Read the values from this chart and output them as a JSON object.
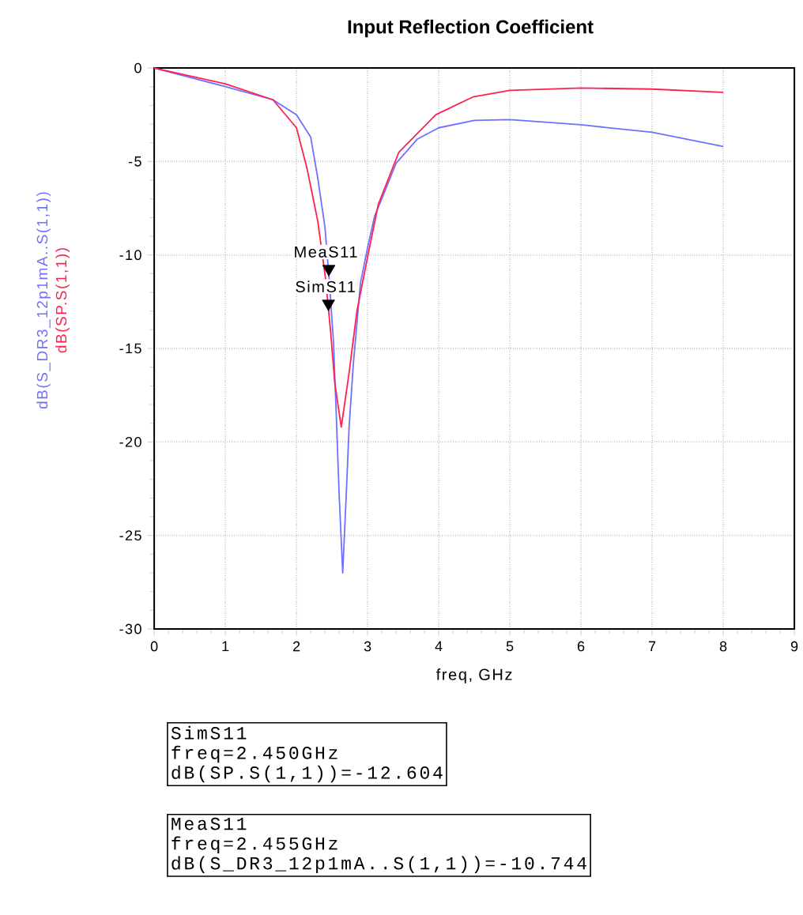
{
  "chart_data": {
    "type": "line",
    "title": "Input Reflection Coefficient",
    "xlabel": "freq, GHz",
    "xlim": [
      0,
      9
    ],
    "xticks": [
      0,
      1,
      2,
      3,
      4,
      5,
      6,
      7,
      8,
      9
    ],
    "ylim": [
      -30,
      0
    ],
    "yticks": [
      -30,
      -25,
      -20,
      -15,
      -10,
      -5,
      0
    ],
    "grid": true,
    "series": [
      {
        "name": "dB(S_DR3_12p1mA..S(1,1))",
        "color": "#7070ff",
        "x": [
          0,
          1,
          1.67,
          2.0,
          2.2,
          2.3,
          2.4,
          2.46,
          2.52,
          2.56,
          2.6,
          2.65,
          2.7,
          2.74,
          2.8,
          2.9,
          3.0,
          3.1,
          3.2,
          3.4,
          3.7,
          4.0,
          4.5,
          5.0,
          6.0,
          7.0,
          8.0
        ],
        "values": [
          0,
          -1.0,
          -1.7,
          -2.5,
          -3.7,
          -5.9,
          -8.5,
          -11.3,
          -14.6,
          -18.6,
          -22.8,
          -27.0,
          -22.8,
          -19.2,
          -15.8,
          -11.5,
          -9.6,
          -7.9,
          -7.0,
          -5.1,
          -3.8,
          -3.2,
          -2.8,
          -2.76,
          -3.04,
          -3.44,
          -4.2
        ]
      },
      {
        "name": "dB(SP.S(1,1))",
        "color": "#ff2050",
        "x": [
          0,
          1.0,
          1.67,
          2.0,
          2.15,
          2.3,
          2.41,
          2.48,
          2.54,
          2.63,
          2.74,
          2.85,
          3.0,
          3.15,
          3.44,
          3.96,
          4.48,
          5.0,
          6.0,
          7.0,
          8.0
        ],
        "values": [
          0,
          -0.85,
          -1.7,
          -3.2,
          -5.4,
          -8.2,
          -11.3,
          -14.1,
          -16.9,
          -19.2,
          -16.3,
          -13.0,
          -10.1,
          -7.3,
          -4.5,
          -2.5,
          -1.55,
          -1.2,
          -1.07,
          -1.13,
          -1.3
        ]
      }
    ],
    "annotations": [
      {
        "text": "MeaS11",
        "x": 2.455,
        "y": -10.744
      },
      {
        "text": "SimS11",
        "x": 2.45,
        "y": -12.604
      },
      "SimS11",
      "freq=2.450GHz",
      "dB(SP.S(1,1))=-12.604",
      "MeaS11",
      "freq=2.455GHz",
      "dB(S_DR3_12p1mA..S(1,1))=-10.744"
    ]
  }
}
